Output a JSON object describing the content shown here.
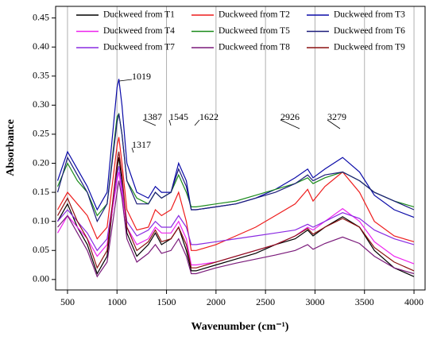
{
  "chart_data": {
    "type": "line",
    "xlabel": "Wavenumber (cm⁻¹)",
    "ylabel": "Absorbance",
    "x": [
      400,
      500,
      600,
      700,
      800,
      900,
      1000,
      1019,
      1050,
      1100,
      1200,
      1317,
      1387,
      1450,
      1545,
      1622,
      1700,
      1750,
      1800,
      2000,
      2200,
      2400,
      2600,
      2800,
      2926,
      2980,
      3100,
      3279,
      3450,
      3600,
      3800,
      4000
    ],
    "series": [
      {
        "name": "Duckweed from T1",
        "color": "#000000",
        "values": [
          0.1,
          0.13,
          0.09,
          0.06,
          0.01,
          0.04,
          0.19,
          0.21,
          0.17,
          0.08,
          0.04,
          0.06,
          0.08,
          0.06,
          0.07,
          0.09,
          0.05,
          0.015,
          0.015,
          0.025,
          0.035,
          0.045,
          0.06,
          0.07,
          0.085,
          0.075,
          0.09,
          0.108,
          0.09,
          0.05,
          0.02,
          0.005
        ]
      },
      {
        "name": "Duckweed from T2",
        "color": "#ee1c1c",
        "values": [
          0.12,
          0.15,
          0.13,
          0.11,
          0.07,
          0.09,
          0.23,
          0.245,
          0.2,
          0.12,
          0.085,
          0.09,
          0.12,
          0.11,
          0.12,
          0.15,
          0.1,
          0.05,
          0.05,
          0.06,
          0.075,
          0.09,
          0.11,
          0.13,
          0.155,
          0.135,
          0.16,
          0.185,
          0.15,
          0.1,
          0.075,
          0.065
        ]
      },
      {
        "name": "Duckweed from T3",
        "color": "#0a0aa8",
        "values": [
          0.17,
          0.22,
          0.19,
          0.16,
          0.12,
          0.15,
          0.33,
          0.345,
          0.3,
          0.2,
          0.15,
          0.14,
          0.16,
          0.15,
          0.15,
          0.2,
          0.17,
          0.12,
          0.12,
          0.125,
          0.13,
          0.14,
          0.155,
          0.175,
          0.19,
          0.175,
          0.19,
          0.21,
          0.185,
          0.145,
          0.12,
          0.107
        ]
      },
      {
        "name": "Duckweed from T4",
        "color": "#ee22ee",
        "values": [
          0.08,
          0.11,
          0.09,
          0.07,
          0.04,
          0.06,
          0.17,
          0.185,
          0.15,
          0.09,
          0.06,
          0.07,
          0.09,
          0.08,
          0.08,
          0.1,
          0.07,
          0.025,
          0.025,
          0.03,
          0.04,
          0.05,
          0.06,
          0.075,
          0.09,
          0.085,
          0.1,
          0.122,
          0.1,
          0.065,
          0.04,
          0.027
        ]
      },
      {
        "name": "Duckweed from T5",
        "color": "#1a8a1a",
        "values": [
          0.16,
          0.2,
          0.17,
          0.15,
          0.11,
          0.13,
          0.28,
          0.285,
          0.25,
          0.17,
          0.14,
          0.13,
          0.15,
          0.14,
          0.15,
          0.18,
          0.15,
          0.125,
          0.125,
          0.13,
          0.135,
          0.145,
          0.155,
          0.165,
          0.175,
          0.165,
          0.175,
          0.185,
          0.17,
          0.15,
          0.135,
          0.125
        ]
      },
      {
        "name": "Duckweed from T6",
        "color": "#1c1c7a",
        "values": [
          0.15,
          0.21,
          0.18,
          0.15,
          0.1,
          0.13,
          0.27,
          0.285,
          0.25,
          0.17,
          0.13,
          0.13,
          0.15,
          0.14,
          0.15,
          0.19,
          0.16,
          0.12,
          0.12,
          0.125,
          0.13,
          0.14,
          0.15,
          0.165,
          0.18,
          0.17,
          0.18,
          0.185,
          0.17,
          0.15,
          0.135,
          0.12
        ]
      },
      {
        "name": "Duckweed from T7",
        "color": "#8a2be2",
        "values": [
          0.1,
          0.12,
          0.1,
          0.08,
          0.05,
          0.07,
          0.18,
          0.195,
          0.16,
          0.1,
          0.075,
          0.085,
          0.1,
          0.09,
          0.09,
          0.11,
          0.09,
          0.06,
          0.06,
          0.065,
          0.07,
          0.075,
          0.08,
          0.085,
          0.095,
          0.09,
          0.1,
          0.115,
          0.105,
          0.085,
          0.07,
          0.06
        ]
      },
      {
        "name": "Duckweed from T8",
        "color": "#7a1a7a",
        "values": [
          0.09,
          0.11,
          0.08,
          0.05,
          0.005,
          0.03,
          0.15,
          0.17,
          0.14,
          0.07,
          0.03,
          0.045,
          0.06,
          0.045,
          0.05,
          0.07,
          0.04,
          0.01,
          0.01,
          0.02,
          0.028,
          0.035,
          0.042,
          0.05,
          0.06,
          0.052,
          0.062,
          0.073,
          0.062,
          0.04,
          0.02,
          0.01
        ]
      },
      {
        "name": "Duckweed from T9",
        "color": "#8b1010",
        "values": [
          0.11,
          0.14,
          0.1,
          0.07,
          0.02,
          0.05,
          0.2,
          0.22,
          0.18,
          0.09,
          0.05,
          0.065,
          0.085,
          0.065,
          0.07,
          0.09,
          0.06,
          0.02,
          0.02,
          0.03,
          0.04,
          0.05,
          0.06,
          0.075,
          0.088,
          0.078,
          0.09,
          0.105,
          0.09,
          0.055,
          0.03,
          0.015
        ]
      }
    ],
    "annotations": [
      "1019",
      "1317",
      "1387",
      "1545",
      "1622",
      "2926",
      "3279"
    ],
    "xlim": [
      380,
      4112
    ],
    "ylim": [
      -0.018,
      0.47
    ],
    "xticks": [
      500,
      1000,
      1500,
      2000,
      2500,
      3000,
      3500,
      4000
    ],
    "yticks": [
      {
        "value": 0,
        "label": "0.00"
      },
      0.05,
      {
        "value": 0.1,
        "label": "0.10"
      },
      0.15,
      {
        "value": 0.2,
        "label": "0.20"
      },
      0.25,
      {
        "value": 0.3,
        "label": "0.30"
      },
      0.35,
      {
        "value": 0.4,
        "label": "0.40"
      },
      0.45
    ],
    "grid": true
  }
}
